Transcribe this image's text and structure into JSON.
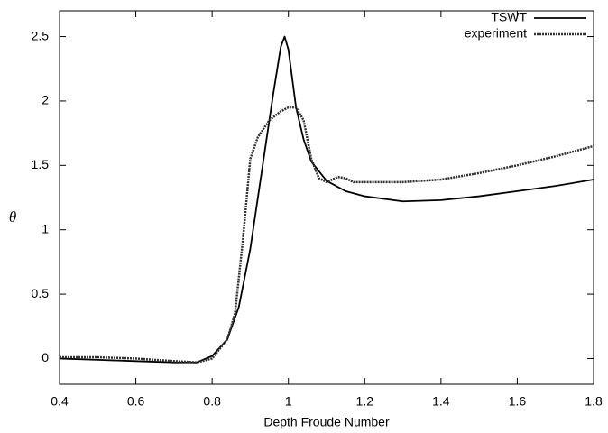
{
  "chart_data": {
    "type": "line",
    "x_label": "Depth Froude Number",
    "y_label": "θ",
    "xlim": [
      0.4,
      1.8
    ],
    "xticks": [
      0.4,
      0.6,
      0.8,
      1,
      1.2,
      1.4,
      1.6,
      1.8
    ],
    "ylim": [
      -0.2,
      2.7
    ],
    "yticks": [
      0,
      0.5,
      1,
      1.5,
      2,
      2.5
    ],
    "legend": "top-right",
    "series": [
      {
        "name": "TSWT",
        "color": "#000000",
        "style": "solid",
        "x": [
          0.4,
          0.5,
          0.6,
          0.7,
          0.76,
          0.8,
          0.84,
          0.87,
          0.9,
          0.93,
          0.96,
          0.98,
          0.99,
          1.0,
          1.02,
          1.04,
          1.06,
          1.1,
          1.15,
          1.2,
          1.3,
          1.4,
          1.5,
          1.6,
          1.7,
          1.8
        ],
        "values": [
          0.0,
          -0.01,
          -0.02,
          -0.03,
          -0.03,
          0.02,
          0.15,
          0.4,
          0.85,
          1.45,
          2.05,
          2.42,
          2.5,
          2.4,
          1.95,
          1.7,
          1.53,
          1.38,
          1.3,
          1.26,
          1.22,
          1.23,
          1.26,
          1.3,
          1.34,
          1.39
        ]
      },
      {
        "name": "experiment",
        "color": "#333333",
        "style": "dotted",
        "x": [
          0.4,
          0.5,
          0.6,
          0.7,
          0.76,
          0.8,
          0.84,
          0.86,
          0.88,
          0.9,
          0.92,
          0.95,
          0.98,
          1.0,
          1.02,
          1.04,
          1.06,
          1.08,
          1.1,
          1.13,
          1.15,
          1.17,
          1.3,
          1.4,
          1.5,
          1.6,
          1.7,
          1.8
        ],
        "values": [
          0.01,
          0.01,
          0.0,
          -0.02,
          -0.03,
          0.0,
          0.15,
          0.35,
          0.9,
          1.55,
          1.72,
          1.85,
          1.92,
          1.95,
          1.95,
          1.85,
          1.55,
          1.4,
          1.37,
          1.41,
          1.4,
          1.37,
          1.37,
          1.39,
          1.44,
          1.5,
          1.57,
          1.65
        ]
      }
    ]
  }
}
